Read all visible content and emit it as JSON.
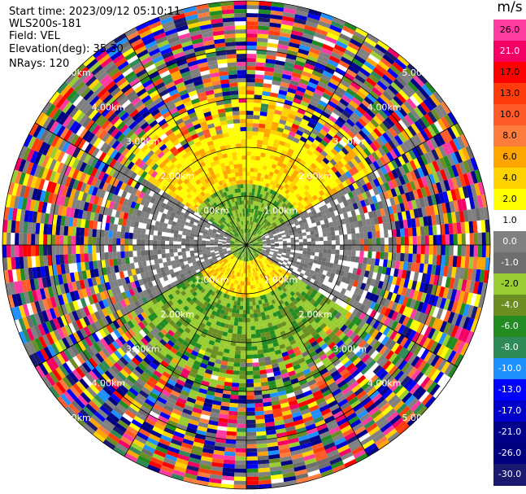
{
  "header": {
    "start_time": "Start time: 2023/09/12 05:10:11",
    "instrument": "WLS200s-181",
    "field": "Field: VEL",
    "elevation": "Elevation(deg): 35.30",
    "nrays": "NRays: 120"
  },
  "colorbar": {
    "unit": "m/s",
    "entries": [
      {
        "label": "26.0",
        "color": "#ff3aa0"
      },
      {
        "label": "21.0",
        "color": "#f40064"
      },
      {
        "label": "17.0",
        "color": "#ff0000"
      },
      {
        "label": "13.0",
        "color": "#ff3c0a"
      },
      {
        "label": "10.0",
        "color": "#ff5a28"
      },
      {
        "label": "8.0",
        "color": "#ff7d3c"
      },
      {
        "label": "6.0",
        "color": "#ffa500"
      },
      {
        "label": "4.0",
        "color": "#ffd200"
      },
      {
        "label": "2.0",
        "color": "#ffff00"
      },
      {
        "label": "1.0",
        "color": "#ffffff"
      },
      {
        "label": "0.0",
        "color": "#808080"
      },
      {
        "label": "-1.0",
        "color": "#6e6e6e"
      },
      {
        "label": "-2.0",
        "color": "#9acd32"
      },
      {
        "label": "-4.0",
        "color": "#6b8e23"
      },
      {
        "label": "-6.0",
        "color": "#228b22"
      },
      {
        "label": "-8.0",
        "color": "#2e8b57"
      },
      {
        "label": "-10.0",
        "color": "#1e90ff"
      },
      {
        "label": "-13.0",
        "color": "#0000ff"
      },
      {
        "label": "-17.0",
        "color": "#0000cd"
      },
      {
        "label": "-21.0",
        "color": "#00008b"
      },
      {
        "label": "-26.0",
        "color": "#000080"
      },
      {
        "label": "-30.0",
        "color": "#191970"
      }
    ]
  },
  "range_rings": {
    "labels": [
      "1.00km",
      "2.00km",
      "3.00km",
      "4.00km",
      "5.00km"
    ]
  }
}
